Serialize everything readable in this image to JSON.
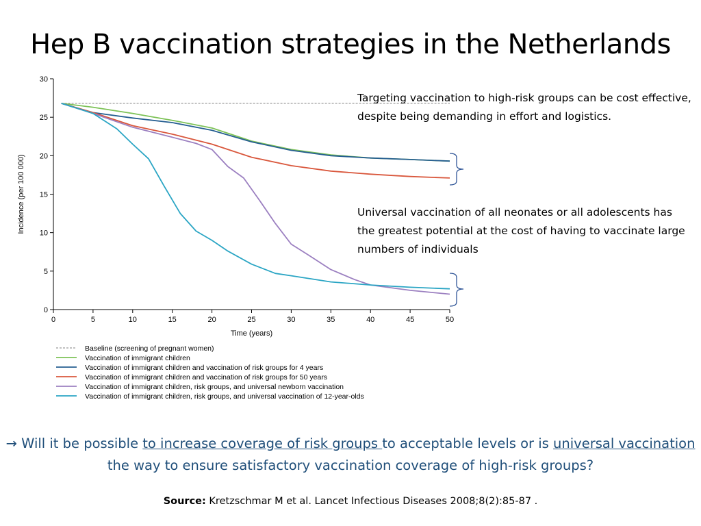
{
  "slide": {
    "title": "Hep B vaccination strategies in the Netherlands",
    "note_targeted": "Targeting vaccination to high-risk groups can be cost effective, despite being demanding in effort and logistics.",
    "note_universal": "Universal vaccination of all neonates or all adolescents has the greatest potential at the cost of having to vaccinate large numbers of individuals",
    "question": {
      "arrow": "→",
      "part1": " Will it be possible ",
      "link1": "to increase coverage of risk groups ",
      "part2": "to acceptable levels or is ",
      "link2": "universal vaccination",
      "part3": " the way to ensure satisfactory vaccination coverage of high-risk groups?"
    },
    "source_label": "Source:",
    "source_text": " Kretzschmar M et al. Lancet Infectious Diseases 2008;8(2):85-87 ."
  },
  "chart_data": {
    "type": "line",
    "xlabel": "Time (years)",
    "ylabel": "Incidence (per 100 000)",
    "xlim": [
      0,
      50
    ],
    "ylim": [
      0,
      30
    ],
    "xticks": [
      0,
      5,
      10,
      15,
      20,
      25,
      30,
      35,
      40,
      45,
      50
    ],
    "yticks": [
      0,
      5,
      10,
      15,
      20,
      25,
      30
    ],
    "grid": false,
    "legend_position": "bottom",
    "series": [
      {
        "name": "Baseline (screening of pregnant women)",
        "color": "#808080",
        "dashed": true,
        "x": [
          1,
          50
        ],
        "y": [
          26.8,
          26.8
        ]
      },
      {
        "name": "Vaccination of immigrant children",
        "color": "#7dc257",
        "dashed": false,
        "x": [
          1,
          5,
          10,
          15,
          20,
          25,
          30,
          35,
          40,
          45,
          50
        ],
        "y": [
          26.8,
          26.3,
          25.5,
          24.6,
          23.6,
          21.9,
          20.8,
          20.1,
          19.7,
          19.5,
          19.3
        ]
      },
      {
        "name": "Vaccination of immigrant children and vaccination of risk groups for 4 years",
        "color": "#255e91",
        "dashed": false,
        "x": [
          1,
          5,
          10,
          15,
          20,
          25,
          30,
          35,
          40,
          45,
          50
        ],
        "y": [
          26.8,
          25.6,
          24.9,
          24.3,
          23.3,
          21.8,
          20.7,
          20.0,
          19.7,
          19.5,
          19.3
        ]
      },
      {
        "name": "Vaccination of immigrant children and vaccination of risk groups for 50 years",
        "color": "#d9573c",
        "dashed": false,
        "x": [
          1,
          5,
          10,
          15,
          20,
          25,
          30,
          35,
          40,
          45,
          50
        ],
        "y": [
          26.8,
          25.6,
          23.9,
          22.8,
          21.5,
          19.8,
          18.7,
          18.0,
          17.6,
          17.3,
          17.1
        ]
      },
      {
        "name": "Vaccination of immigrant children, risk groups, and universal newborn vaccination",
        "color": "#9b7fc0",
        "dashed": false,
        "x": [
          1,
          5,
          10,
          15,
          18,
          20,
          22,
          24,
          26,
          28,
          30,
          32,
          35,
          38,
          40,
          45,
          50
        ],
        "y": [
          26.8,
          25.5,
          23.7,
          22.4,
          21.6,
          20.8,
          18.6,
          17.1,
          14.2,
          11.2,
          8.5,
          7.2,
          5.2,
          3.9,
          3.2,
          2.5,
          2.0
        ]
      },
      {
        "name": "Vaccination of immigrant children, risk groups, and universal vaccination of 12-year-olds",
        "color": "#2aa5c4",
        "dashed": false,
        "x": [
          1,
          5,
          8,
          10,
          12,
          14,
          16,
          18,
          20,
          22,
          25,
          28,
          30,
          35,
          40,
          45,
          50
        ],
        "y": [
          26.8,
          25.5,
          23.5,
          21.5,
          19.6,
          16.0,
          12.5,
          10.2,
          9.0,
          7.6,
          5.9,
          4.7,
          4.4,
          3.6,
          3.2,
          2.9,
          2.7
        ]
      }
    ]
  }
}
